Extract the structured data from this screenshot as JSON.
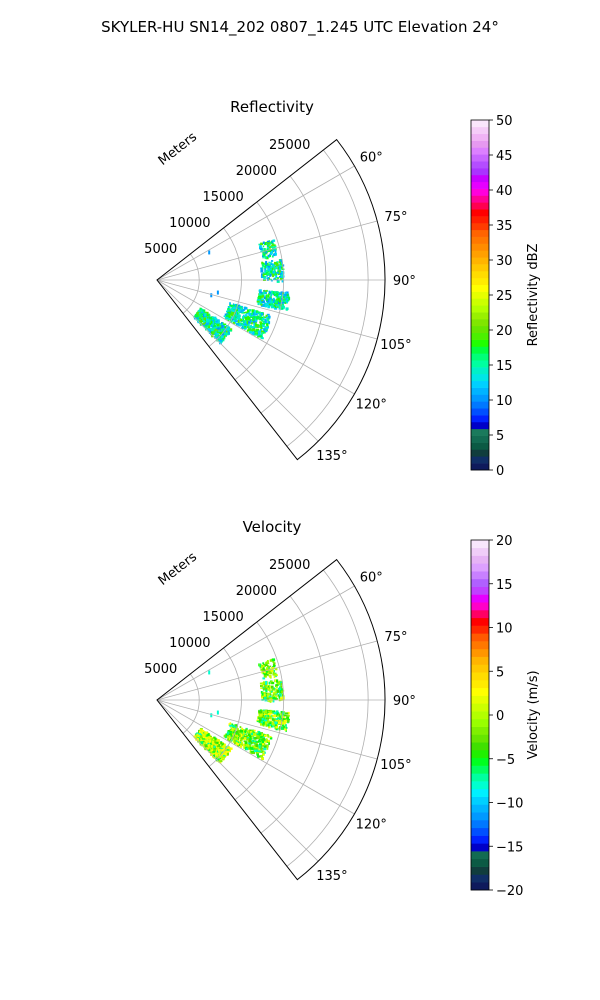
{
  "suptitle": "SKYLER-HU  SN14_202  0807_1.245 UTC Elevation 24°",
  "chart_data": [
    {
      "type": "polar-sector",
      "title": "Reflectivity",
      "radial_label": "Meters",
      "radial_ticks": [
        "5000",
        "10000",
        "15000",
        "20000",
        "25000"
      ],
      "radial_values": [
        5000,
        10000,
        15000,
        20000,
        25000
      ],
      "rmax": 27000,
      "theta_ticks": [
        "60°",
        "75°",
        "90°",
        "105°",
        "120°",
        "135°"
      ],
      "theta_values": [
        60,
        75,
        90,
        105,
        120,
        135
      ],
      "theta_range": [
        52,
        142
      ],
      "grid": true,
      "colorbar": {
        "label": "Reflectivity dBZ",
        "range": [
          0,
          50
        ],
        "ticks": [
          "0",
          "5",
          "10",
          "15",
          "20",
          "25",
          "30",
          "35",
          "40",
          "45",
          "50"
        ],
        "tick_values": [
          0,
          5,
          10,
          15,
          20,
          25,
          30,
          35,
          40,
          45,
          50
        ]
      },
      "colors": [
        "#0e1a5c",
        "#0f2e66",
        "#103d3d",
        "#0b5a44",
        "#126b52",
        "#1a7a5c",
        "#0000c8",
        "#0022ff",
        "#0050ff",
        "#0078ff",
        "#0099ff",
        "#00b4ff",
        "#00d0ff",
        "#00e6e6",
        "#00f0c8",
        "#00ffa0",
        "#00ff78",
        "#00ff40",
        "#20ff00",
        "#4cf000",
        "#66e600",
        "#80e600",
        "#99f000",
        "#b3ff00",
        "#ccff00",
        "#e6ff00",
        "#ffff00",
        "#ffeb00",
        "#ffdc00",
        "#ffc800",
        "#ffb400",
        "#ffa000",
        "#ff8c00",
        "#ff7800",
        "#ff6400",
        "#ff3c00",
        "#ff1e00",
        "#ff0000",
        "#ff0050",
        "#ff0096",
        "#ff00dc",
        "#e600ff",
        "#c800ff",
        "#aa33ff",
        "#b44dff",
        "#c866ff",
        "#dc80ff",
        "#e699f0",
        "#f0b3f5",
        "#f5ccf8",
        "#fae6fc"
      ],
      "echo_color_range": [
        10,
        20
      ]
    },
    {
      "type": "polar-sector",
      "title": "Velocity",
      "radial_label": "Meters",
      "radial_ticks": [
        "5000",
        "10000",
        "15000",
        "20000",
        "25000"
      ],
      "radial_values": [
        5000,
        10000,
        15000,
        20000,
        25000
      ],
      "rmax": 27000,
      "theta_ticks": [
        "60°",
        "75°",
        "90°",
        "105°",
        "120°",
        "135°"
      ],
      "theta_values": [
        60,
        75,
        90,
        105,
        120,
        135
      ],
      "theta_range": [
        52,
        142
      ],
      "grid": true,
      "colorbar": {
        "label": "Velocity (m/s)",
        "range": [
          -20,
          20
        ],
        "ticks": [
          "−20",
          "−15",
          "−10",
          "−5",
          "0",
          "5",
          "10",
          "15",
          "20"
        ],
        "tick_values": [
          -20,
          -15,
          -10,
          -5,
          0,
          5,
          10,
          15,
          20
        ]
      },
      "colors": [
        "#0e1a5c",
        "#0f2e66",
        "#103d3d",
        "#0b5a44",
        "#126b52",
        "#0000c8",
        "#0022ff",
        "#0050ff",
        "#0078ff",
        "#0099ff",
        "#00b4ff",
        "#00d0ff",
        "#00f0ff",
        "#00ffd0",
        "#00ffa0",
        "#00ff60",
        "#00ff20",
        "#20f000",
        "#40e000",
        "#66e600",
        "#80f000",
        "#99ff00",
        "#b3ff00",
        "#ccff00",
        "#e6ff00",
        "#ffff00",
        "#ffeb00",
        "#ffdc00",
        "#ffc800",
        "#ffb400",
        "#ff9600",
        "#ff7800",
        "#ff5a00",
        "#ff2800",
        "#ff0000",
        "#ff0064",
        "#ff00c8",
        "#e600ff",
        "#c040ff",
        "#b060ff",
        "#c880ff",
        "#dca0ff",
        "#e6b3f5",
        "#f0cdf8",
        "#f8e6fc"
      ],
      "echo_color_range": [
        -8,
        3
      ]
    }
  ]
}
